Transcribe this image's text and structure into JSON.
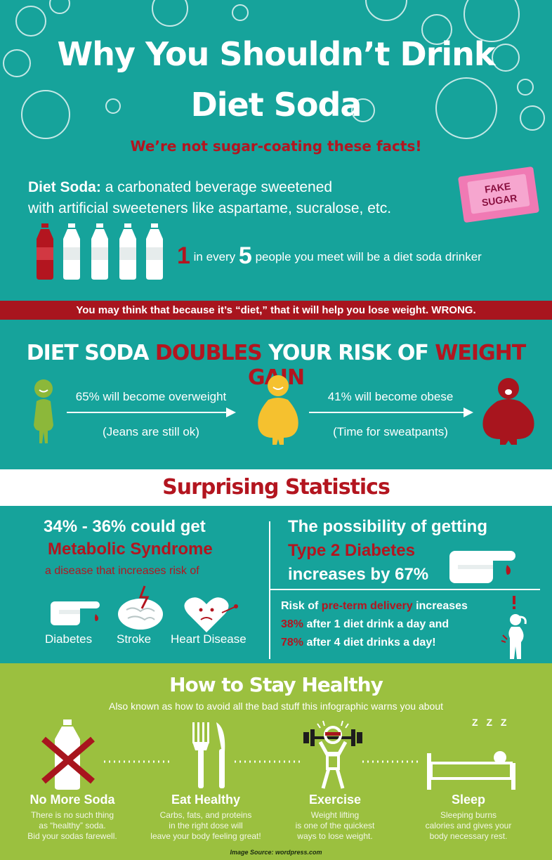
{
  "header": {
    "title_line1": "Why You Shouldn’t Drink",
    "title_line2": "Diet Soda",
    "subtitle": "We’re not sugar-coating these facts!"
  },
  "definition": {
    "term": "Diet Soda:",
    "line1": "a carbonated beverage sweetened",
    "line2": "with artificial sweeteners like aspartame, sucralose, etc.",
    "packet_label_line1": "FAKE",
    "packet_label_line2": "SUGAR"
  },
  "ratio_stat": {
    "num1": "1",
    "text1": "in every",
    "num2": "5",
    "text2": "people you meet will be a diet soda drinker"
  },
  "banner": "You may think that because it’s “diet,” that it will help you lose weight. WRONG.",
  "weight_gain": {
    "title_part1": "DIET SODA ",
    "title_part2": "DOUBLES",
    "title_part3": " YOUR RISK OF ",
    "title_part4": "WEIGHT GAIN",
    "step1_top": "65% will become overweight",
    "step1_bottom": "(Jeans are still ok)",
    "step2_top": "41% will become obese",
    "step2_bottom": "(Time for sweatpants)"
  },
  "stats": {
    "title": "Surprising Statistics",
    "metabolic_line1": "34% - 36% could get",
    "metabolic_line2": "Metabolic Syndrome",
    "metabolic_line3": "a disease that increases risk of",
    "risk_labels": [
      "Diabetes",
      "Stroke",
      "Heart Disease"
    ],
    "diabetes_line1": "The possibility of getting",
    "diabetes_line2": "Type 2 Diabetes",
    "diabetes_line3": "increases by 67%",
    "preterm_p1": "Risk of ",
    "preterm_p2": "pre-term delivery",
    "preterm_p3": " increases",
    "preterm_p4": "38%",
    "preterm_p5": " after 1 diet drink a day and",
    "preterm_p6": "78%",
    "preterm_p7": " after 4 diet drinks a day!"
  },
  "healthy": {
    "title": "How to Stay Healthy",
    "subtitle": "Also known as how to avoid all the bad stuff this infographic warns you about",
    "items": [
      {
        "title": "No More Soda",
        "line1": "There is no such thing",
        "line2": "as “healthy” soda.",
        "line3": "Bid your sodas farewell."
      },
      {
        "title": "Eat Healthy",
        "line1": "Carbs, fats, and proteins",
        "line2": "in the right dose will",
        "line3": "leave your body feeling great!"
      },
      {
        "title": "Exercise",
        "line1": "Weight lifting",
        "line2": "is one of the quickest",
        "line3": "ways to lose weight."
      },
      {
        "title": "Sleep",
        "line1": "Sleeping burns",
        "line2": "calories and gives your",
        "line3": "body necessary rest."
      }
    ],
    "zzz": "Z Z Z"
  },
  "source": "Image Source: wordpress.com",
  "colors": {
    "teal": "#16a39b",
    "red": "#b3151f",
    "green": "#9bc03f",
    "yellow": "#f5c12f",
    "lime": "#8cb83a"
  }
}
